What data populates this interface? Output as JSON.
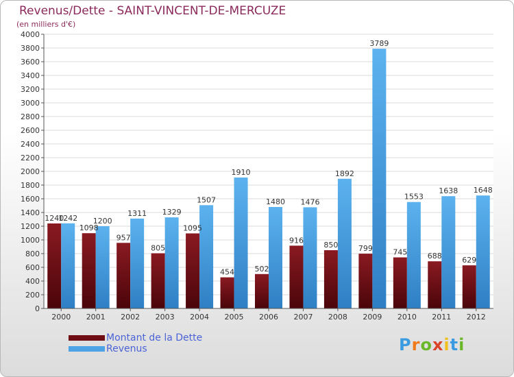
{
  "title": "Revenus/Dette - SAINT-VINCENT-DE-MERCUZE",
  "subtitle": "(en milliers d'€)",
  "chart_data": {
    "type": "bar",
    "categories": [
      "2000",
      "2001",
      "2002",
      "2003",
      "2004",
      "2005",
      "2006",
      "2007",
      "2008",
      "2009",
      "2010",
      "2011",
      "2012"
    ],
    "series": [
      {
        "name": "Montant de la Dette",
        "color": "#6e0d14",
        "values": [
          1240,
          1098,
          957,
          805,
          1095,
          454,
          502,
          916,
          850,
          799,
          745,
          688,
          629
        ]
      },
      {
        "name": "Revenus",
        "color": "#4da3e4",
        "values": [
          1242,
          1200,
          1311,
          1329,
          1507,
          1910,
          1480,
          1476,
          1892,
          3789,
          1553,
          1638,
          1648
        ]
      }
    ],
    "ylim": [
      0,
      4000
    ],
    "ytick_step": 200,
    "grid": true,
    "legend_position": "bottom-left"
  },
  "legend": {
    "debt_label": "Montant de la Dette",
    "revenue_label": "Revenus"
  },
  "logo": {
    "text": "Proxiti",
    "letters": [
      "P",
      "r",
      "o",
      "x",
      "i",
      "t",
      "i"
    ],
    "colors": [
      "#3a9be0",
      "#f07a1a",
      "#6ab82a",
      "#d9442a",
      "#f0c020",
      "#3a9be0",
      "#6ab82a"
    ]
  }
}
